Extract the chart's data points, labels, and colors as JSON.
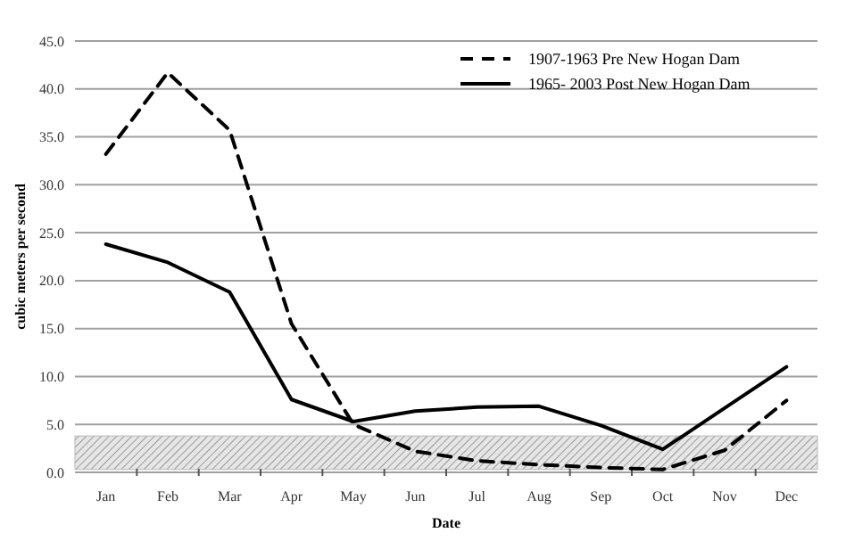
{
  "chart_data": {
    "type": "line",
    "xlabel": "Date",
    "ylabel": "cubic meters per second",
    "categories": [
      "Jan",
      "Feb",
      "Mar",
      "Apr",
      "May",
      "Jun",
      "Jul",
      "Aug",
      "Sep",
      "Oct",
      "Nov",
      "Dec"
    ],
    "series": [
      {
        "name": "1907-1963 Pre New Hogan Dam",
        "color": "#000000",
        "line_style": "dashed",
        "values": [
          33.2,
          41.7,
          35.7,
          15.5,
          5.0,
          2.2,
          1.2,
          0.8,
          0.5,
          0.3,
          2.3,
          7.5
        ]
      },
      {
        "name": "1965- 2003 Post New Hogan Dam",
        "color": "#000000",
        "line_style": "solid",
        "values": [
          23.8,
          21.9,
          18.8,
          7.6,
          5.3,
          6.4,
          6.8,
          6.9,
          4.9,
          2.4,
          6.7,
          11.0
        ]
      }
    ],
    "ylim": [
      0,
      45
    ],
    "yticks": [
      {
        "value": 0,
        "label": "0.0"
      },
      {
        "value": 5,
        "label": "5.0"
      },
      {
        "value": 10,
        "label": "10.0"
      },
      {
        "value": 15,
        "label": "15.0"
      },
      {
        "value": 20,
        "label": "20.0"
      },
      {
        "value": 25,
        "label": "25.0"
      },
      {
        "value": 30,
        "label": "30.0"
      },
      {
        "value": 35,
        "label": "35.0"
      },
      {
        "value": 40,
        "label": "40.0"
      },
      {
        "value": 45,
        "label": "45.0"
      }
    ],
    "bands": [
      {
        "axis": "y",
        "from": 0.3,
        "to": 3.8,
        "color": "#b8b8b8"
      }
    ],
    "grid": "y",
    "legend": "top right",
    "marker": "none"
  }
}
